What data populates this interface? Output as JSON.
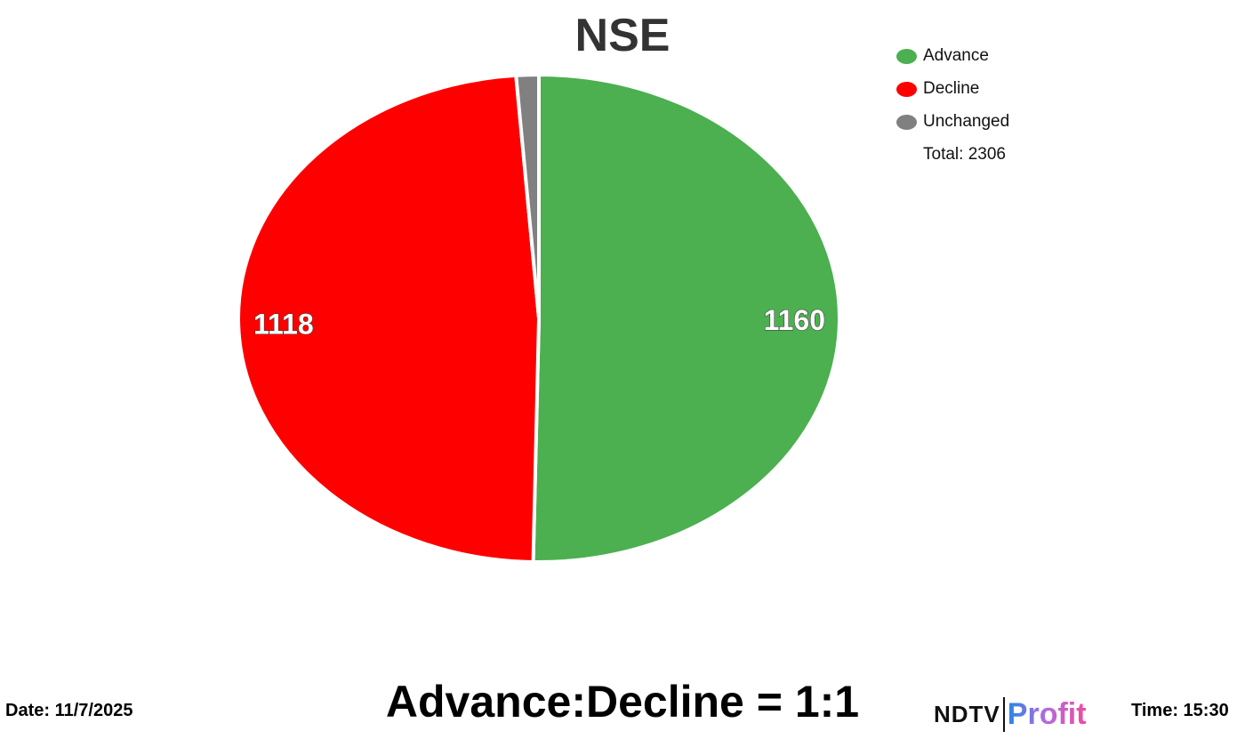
{
  "chart_data": {
    "type": "pie",
    "title": "NSE",
    "categories": [
      "Advance",
      "Decline",
      "Unchanged"
    ],
    "values": [
      1160,
      1118,
      28
    ],
    "colors": [
      "#4caf50",
      "#ff0000",
      "#808080"
    ],
    "data_labels": [
      "1160",
      "1118",
      ""
    ],
    "legend_position": "top-right",
    "total_label": "Total: 2306"
  },
  "footer": {
    "date": "Date: 11/7/2025",
    "ratio": "Advance:Decline = 1:1",
    "time": "Time: 15:30",
    "logo_ndtv": "NDTV",
    "logo_profit": "Profit"
  }
}
